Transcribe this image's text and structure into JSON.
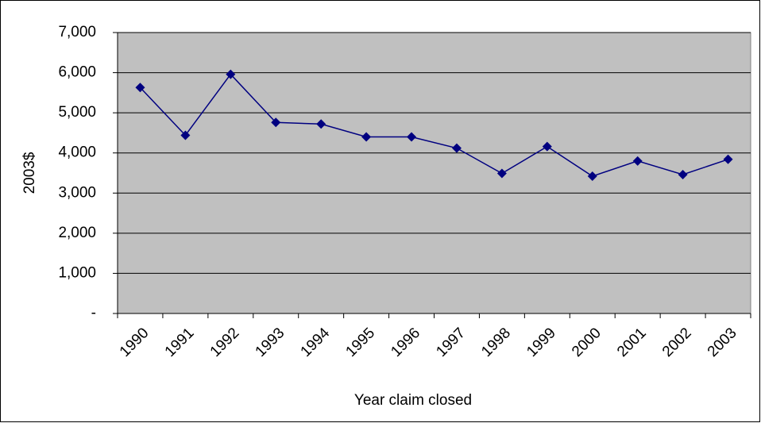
{
  "chart_data": {
    "type": "line",
    "x_label": "Year claim closed",
    "y_label": "2003$",
    "categories": [
      "1990",
      "1991",
      "1992",
      "1993",
      "1994",
      "1995",
      "1996",
      "1997",
      "1998",
      "1999",
      "2000",
      "2001",
      "2002",
      "2003"
    ],
    "series": [
      {
        "color": "#000080",
        "values": [
          5630,
          4440,
          5960,
          4760,
          4720,
          4400,
          4400,
          4120,
          3490,
          4160,
          3420,
          3800,
          3460,
          3840
        ]
      }
    ],
    "ylim": [
      0,
      7000
    ],
    "yticks": [
      {
        "value": 0,
        "label": "-"
      },
      {
        "value": 1000,
        "label": "1,000"
      },
      {
        "value": 2000,
        "label": "2,000"
      },
      {
        "value": 3000,
        "label": "3,000"
      },
      {
        "value": 4000,
        "label": "4,000"
      },
      {
        "value": 5000,
        "label": "5,000"
      },
      {
        "value": 6000,
        "label": "6,000"
      },
      {
        "value": 7000,
        "label": "7,000"
      }
    ],
    "grid": true,
    "plot_background": "#c0c0c0"
  }
}
